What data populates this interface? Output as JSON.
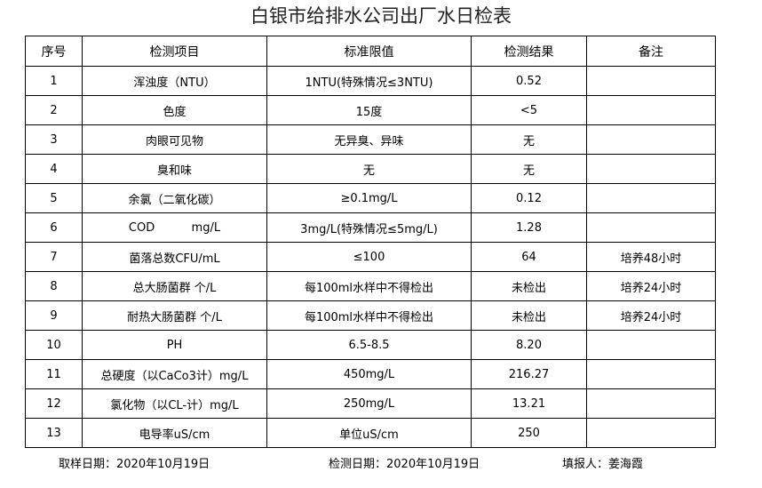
{
  "title": "白银市给排水公司出厂水日检表",
  "table": {
    "header": [
      "序号",
      "检测项目",
      "标准限值",
      "检测结果",
      "备注"
    ],
    "rows": [
      [
        "1",
        "浑浊度（NTU）",
        "1NTU(特殊情况≤3NTU)",
        "0.52"
      ],
      [
        "2",
        "色度",
        "15度",
        "<5"
      ],
      [
        "3",
        "肉眼可见物",
        "无异臭、异味",
        "无"
      ],
      [
        "4",
        "臭和味",
        "无",
        "无"
      ],
      [
        "5",
        "余氯（二氧化碳）",
        "≥0.1mg/L",
        "0.12"
      ],
      [
        "6",
        "COD          mg/L",
        "3mg/L(特殊情况≤5mg/L)",
        "1.28"
      ],
      [
        "7",
        "菌落总数CFU/mL",
        "≤100",
        "64",
        "培养48小时"
      ],
      [
        "8",
        "总大肠菌群 个/L",
        "每100ml水样中不得检出",
        "未检出",
        "培养24小时"
      ],
      [
        "9",
        "耐热大肠菌群 个/L",
        "每100ml水样中不得检出",
        "未检出",
        "培养24小时"
      ],
      [
        "10",
        "PH",
        "6.5-8.5",
        "8.20"
      ],
      [
        "11",
        "总硬度（以CaCo3计）mg/L",
        "450mg/L",
        "216.27"
      ],
      [
        "12",
        "氯化物（以CL-计）mg/L",
        "250mg/L",
        "13.21"
      ],
      [
        "13",
        "电导率uS/cm",
        "单位uS/cm",
        "250"
      ]
    ]
  },
  "footer": {
    "sampling_date": "取样日期：2020年10月19日",
    "test_date": "检测日期：2020年10月19日",
    "reporter": "填报人：姜海霞"
  }
}
